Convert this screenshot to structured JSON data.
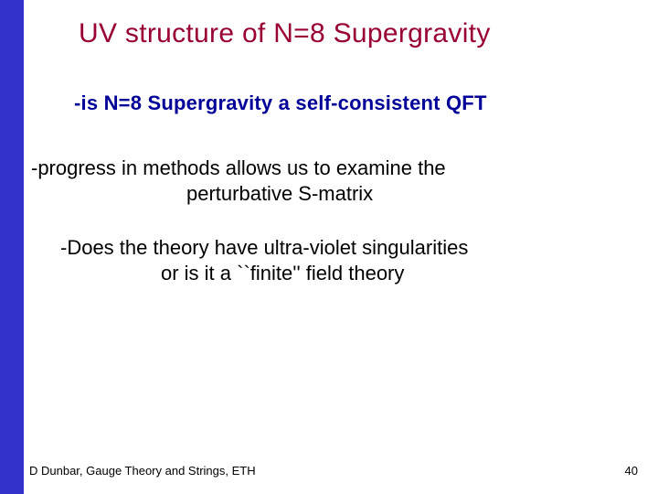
{
  "colors": {
    "sidebar": "#3333cc",
    "content_bg": "#ffffff",
    "title": "#990033",
    "bullet1": "#000099",
    "bullet2": "#000000",
    "bullet3": "#000000",
    "footer": "#000000",
    "pagenum": "#000000"
  },
  "title": "UV structure of N=8 Supergravity",
  "bullet1": "-is N=8 Supergravity a self-consistent  QFT",
  "bullet2_line1": "-progress in methods allows us to examine the",
  "bullet2_line2": "perturbative S-matrix",
  "bullet3_line1": "-Does the theory have ultra-violet singularities",
  "bullet3_line2": "or is it a ``finite'' field theory",
  "footer": "D Dunbar, Gauge Theory and Strings, ETH",
  "pagenum": "40",
  "fontsizes": {
    "title": 30,
    "bullets": 22,
    "footer": 13
  }
}
